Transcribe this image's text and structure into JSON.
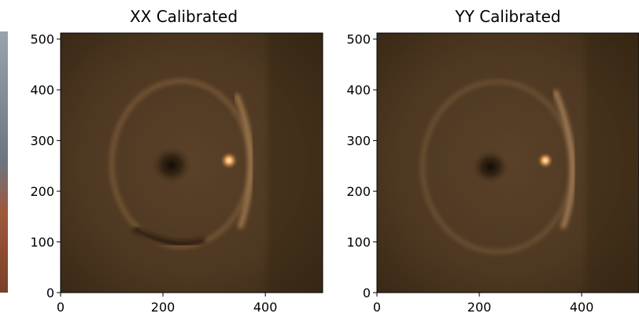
{
  "chart_data": [
    {
      "type": "image",
      "title": "XX Calibrated",
      "xlim": [
        0,
        512
      ],
      "ylim": [
        0,
        512
      ],
      "xticks": [
        0,
        200,
        400
      ],
      "yticks": [
        0,
        100,
        200,
        300,
        400,
        500
      ]
    },
    {
      "type": "image",
      "title": "YY Calibrated",
      "xlim": [
        0,
        512
      ],
      "ylim": [
        0,
        512
      ],
      "xticks": [
        0,
        200,
        400
      ],
      "yticks": [
        0,
        100,
        200,
        300,
        400,
        500
      ]
    }
  ]
}
